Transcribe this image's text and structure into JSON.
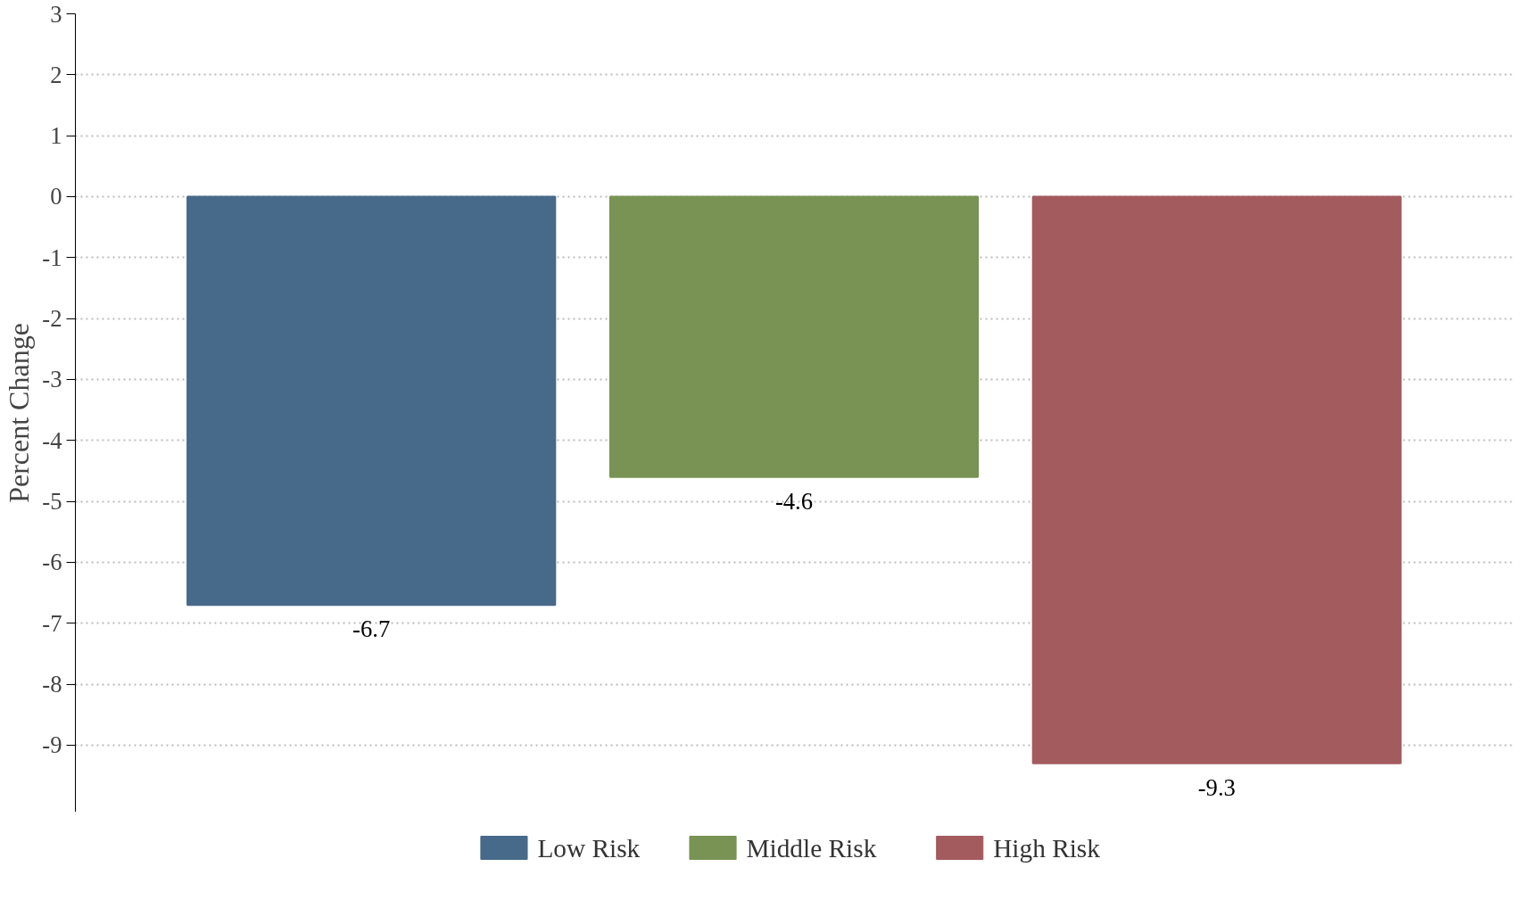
{
  "chart_data": {
    "type": "bar",
    "ylabel": "Percent Change",
    "categories": [
      null,
      null,
      null
    ],
    "series": [
      {
        "name": "Low Risk",
        "color": "#476a8a",
        "values": [
          -6.7,
          null,
          null
        ]
      },
      {
        "name": "Middle Risk",
        "color": "#789354",
        "values": [
          null,
          -4.6,
          null
        ]
      },
      {
        "name": "High Risk",
        "color": "#a45b5e",
        "values": [
          null,
          null,
          -9.3
        ]
      }
    ],
    "ylim": [
      -10.1,
      3
    ],
    "yticks": [
      3,
      2,
      1,
      0,
      -1,
      -2,
      -3,
      -4,
      -5,
      -6,
      -7,
      -8,
      -9
    ],
    "grid": "y",
    "legend": "bottom",
    "data_labels": true
  }
}
